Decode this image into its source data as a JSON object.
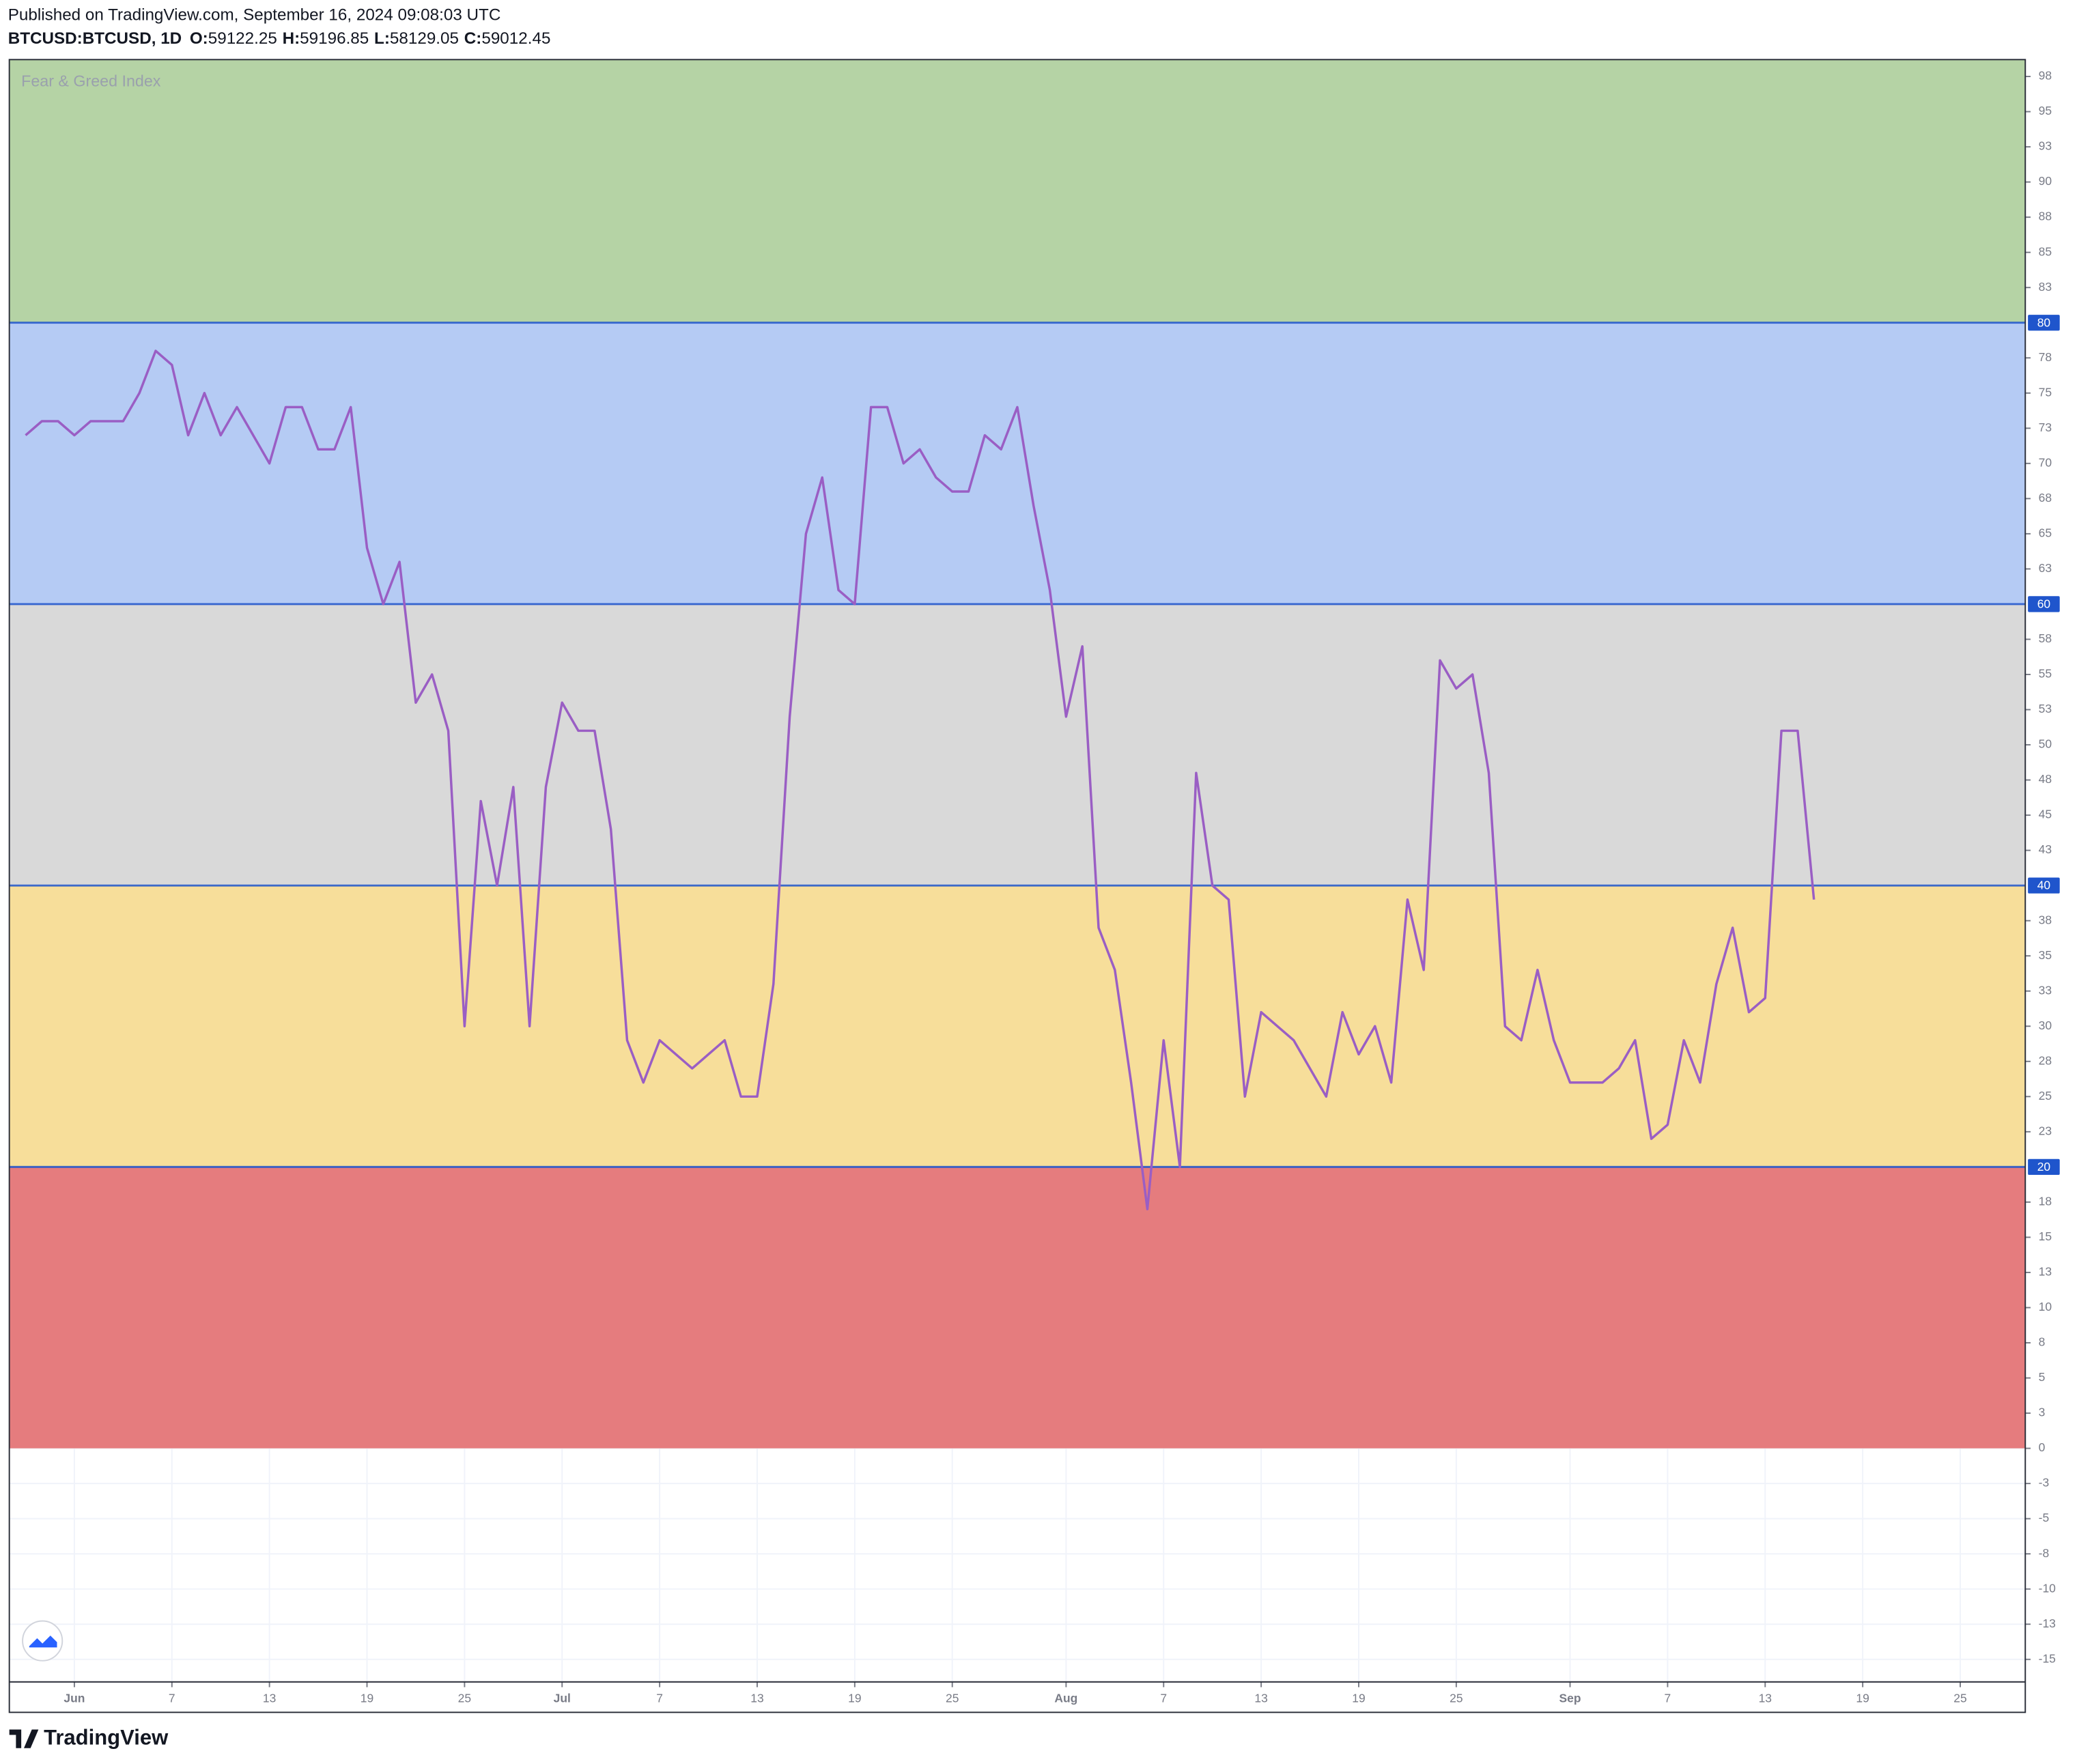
{
  "header": {
    "published": "Published on TradingView.com, September 16, 2024 09:08:03 UTC",
    "symbol": "BTCUSD:BTCUSD, 1D",
    "ohlc": [
      {
        "label": "O:",
        "value": 59122.25
      },
      {
        "label": "H:",
        "value": 59196.85
      },
      {
        "label": "L:",
        "value": 58129.05
      },
      {
        "label": "C:",
        "value": 59012.45
      }
    ]
  },
  "chart_data": {
    "type": "line",
    "watermark": "Fear & Greed Index",
    "x": [
      "05-29",
      "05-30",
      "05-31",
      "06-01",
      "06-02",
      "06-03",
      "06-04",
      "06-05",
      "06-06",
      "06-07",
      "06-08",
      "06-09",
      "06-10",
      "06-11",
      "06-12",
      "06-13",
      "06-14",
      "06-15",
      "06-16",
      "06-17",
      "06-18",
      "06-19",
      "06-20",
      "06-21",
      "06-22",
      "06-23",
      "06-24",
      "06-25",
      "06-26",
      "06-27",
      "06-28",
      "06-29",
      "06-30",
      "07-01",
      "07-02",
      "07-03",
      "07-04",
      "07-05",
      "07-06",
      "07-07",
      "07-08",
      "07-09",
      "07-10",
      "07-11",
      "07-12",
      "07-13",
      "07-14",
      "07-15",
      "07-16",
      "07-17",
      "07-18",
      "07-19",
      "07-20",
      "07-21",
      "07-22",
      "07-23",
      "07-24",
      "07-25",
      "07-26",
      "07-27",
      "07-28",
      "07-29",
      "07-30",
      "07-31",
      "08-01",
      "08-02",
      "08-03",
      "08-04",
      "08-05",
      "08-06",
      "08-07",
      "08-08",
      "08-09",
      "08-10",
      "08-11",
      "08-12",
      "08-13",
      "08-14",
      "08-15",
      "08-16",
      "08-17",
      "08-18",
      "08-19",
      "08-20",
      "08-21",
      "08-22",
      "08-23",
      "08-24",
      "08-25",
      "08-26",
      "08-27",
      "08-28",
      "08-29",
      "08-30",
      "08-31",
      "09-01",
      "09-02",
      "09-03",
      "09-04",
      "09-05",
      "09-06",
      "09-07",
      "09-08",
      "09-09",
      "09-10",
      "09-11",
      "09-12",
      "09-13",
      "09-14",
      "09-15",
      "09-16"
    ],
    "series": [
      {
        "color": "#9a5ec4",
        "values": [
          72,
          73,
          73,
          72,
          73,
          73,
          73,
          75,
          78,
          77,
          72,
          75,
          72,
          74,
          72,
          70,
          74,
          74,
          71,
          71,
          74,
          64,
          60,
          63,
          53,
          55,
          51,
          30,
          46,
          40,
          47,
          30,
          47,
          53,
          51,
          51,
          44,
          29,
          26,
          29,
          28,
          27,
          28,
          29,
          25,
          25,
          33,
          52,
          65,
          69,
          61,
          60,
          74,
          74,
          70,
          71,
          69,
          68,
          68,
          72,
          71,
          74,
          67,
          61,
          52,
          57,
          37,
          34,
          26,
          17,
          29,
          20,
          48,
          40,
          39,
          25,
          31,
          30,
          29,
          27,
          25,
          31,
          28,
          30,
          26,
          39,
          34,
          56,
          54,
          55,
          48,
          30,
          29,
          34,
          29,
          26,
          26,
          26,
          27,
          29,
          22,
          23,
          29,
          26,
          33,
          37,
          31,
          32,
          51,
          51,
          39
        ]
      }
    ],
    "xlim": [
      "05-28",
      "09-29"
    ],
    "xticks": [
      {
        "value": "06-01",
        "label": "Jun"
      },
      {
        "value": "06-07",
        "label": "7"
      },
      {
        "value": "06-13",
        "label": "13"
      },
      {
        "value": "06-19",
        "label": "19"
      },
      {
        "value": "06-25",
        "label": "25"
      },
      {
        "value": "07-01",
        "label": "Jul"
      },
      {
        "value": "07-07",
        "label": "7"
      },
      {
        "value": "07-13",
        "label": "13"
      },
      {
        "value": "07-19",
        "label": "19"
      },
      {
        "value": "07-25",
        "label": "25"
      },
      {
        "value": "08-01",
        "label": "Aug"
      },
      {
        "value": "08-07",
        "label": "7"
      },
      {
        "value": "08-13",
        "label": "13"
      },
      {
        "value": "08-19",
        "label": "19"
      },
      {
        "value": "08-25",
        "label": "25"
      },
      {
        "value": "09-01",
        "label": "Sep"
      },
      {
        "value": "09-07",
        "label": "7"
      },
      {
        "value": "09-13",
        "label": "13"
      },
      {
        "value": "09-19",
        "label": "19"
      },
      {
        "value": "09-25",
        "label": "25"
      }
    ],
    "ylim": [
      -16.6,
      98.7
    ],
    "yticks": [
      {
        "value": 97.5,
        "label": "98"
      },
      95,
      {
        "value": 92.5,
        "label": "93"
      },
      90,
      {
        "value": 87.5,
        "label": "88"
      },
      85,
      {
        "value": 82.5,
        "label": "83"
      },
      {
        "value": 77.5,
        "label": "78"
      },
      75,
      {
        "value": 72.5,
        "label": "73"
      },
      70,
      {
        "value": 67.5,
        "label": "68"
      },
      65,
      {
        "value": 62.5,
        "label": "63"
      },
      {
        "value": 57.5,
        "label": "58"
      },
      55,
      {
        "value": 52.5,
        "label": "53"
      },
      50,
      {
        "value": 47.5,
        "label": "48"
      },
      45,
      {
        "value": 42.5,
        "label": "43"
      },
      {
        "value": 37.5,
        "label": "38"
      },
      35,
      {
        "value": 32.5,
        "label": "33"
      },
      30,
      {
        "value": 27.5,
        "label": "28"
      },
      25,
      {
        "value": 22.5,
        "label": "23"
      },
      {
        "value": 17.5,
        "label": "18"
      },
      15,
      {
        "value": 12.5,
        "label": "13"
      },
      10,
      {
        "value": 7.5,
        "label": "8"
      },
      5,
      {
        "value": 2.5,
        "label": "3"
      },
      0,
      {
        "value": -2.5,
        "label": "-3"
      },
      -5,
      {
        "value": -7.5,
        "label": "-8"
      },
      -10,
      {
        "value": -12.5,
        "label": "-13"
      },
      -15
    ],
    "grid": true,
    "bands": [
      {
        "from": 80,
        "to": 100,
        "color": "#b5d3a5"
      },
      {
        "from": 60,
        "to": 80,
        "color": "#b5cbf4"
      },
      {
        "from": 40,
        "to": 60,
        "color": "#d9d9d9"
      },
      {
        "from": 20,
        "to": 40,
        "color": "#f7de9a"
      },
      {
        "from": 0,
        "to": 20,
        "color": "#e57c7e"
      }
    ],
    "levels": [
      80,
      60,
      40,
      20
    ],
    "level_color": "#1f55cc"
  },
  "footer": {
    "brand": "TradingView"
  }
}
